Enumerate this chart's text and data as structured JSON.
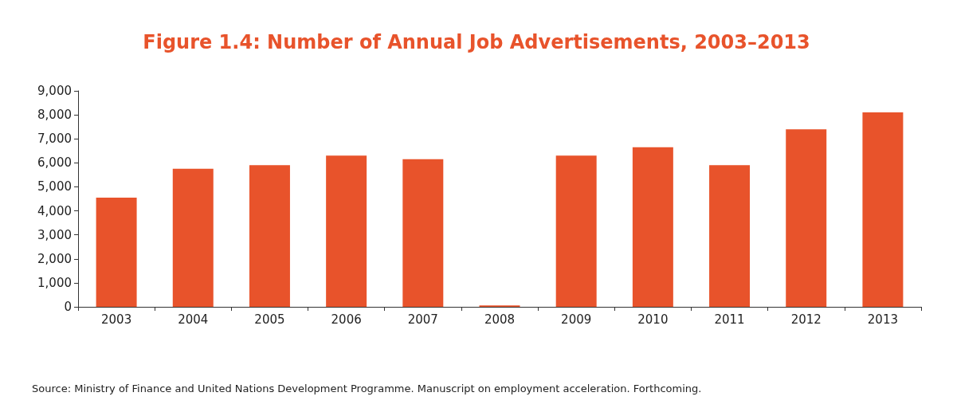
{
  "chart_data": {
    "type": "bar",
    "title": "Figure 1.4: Number of Annual Job Advertisements, 2003–2013",
    "categories": [
      "2003",
      "2004",
      "2005",
      "2006",
      "2007",
      "2008",
      "2009",
      "2010",
      "2011",
      "2012",
      "2013"
    ],
    "values": [
      4550,
      5750,
      5900,
      6300,
      6150,
      60,
      6300,
      6650,
      5900,
      7400,
      8100
    ],
    "color": "#e8532b",
    "ylim": [
      0,
      9000
    ],
    "yticks": [
      {
        "value": 0,
        "label": "0"
      },
      {
        "value": 1000,
        "label": "1,000"
      },
      {
        "value": 2000,
        "label": "2,000"
      },
      {
        "value": 3000,
        "label": "3,000"
      },
      {
        "value": 4000,
        "label": "4,000"
      },
      {
        "value": 5000,
        "label": "5,000"
      },
      {
        "value": 6000,
        "label": "6,000"
      },
      {
        "value": 7000,
        "label": "7,000"
      },
      {
        "value": 8000,
        "label": "8,000"
      },
      {
        "value": 9000,
        "label": "9,000"
      }
    ],
    "grid": false,
    "annotations": [
      "Source: Ministry of Finance and United Nations Development Programme. Manuscript on employment acceleration. Forthcoming."
    ]
  }
}
